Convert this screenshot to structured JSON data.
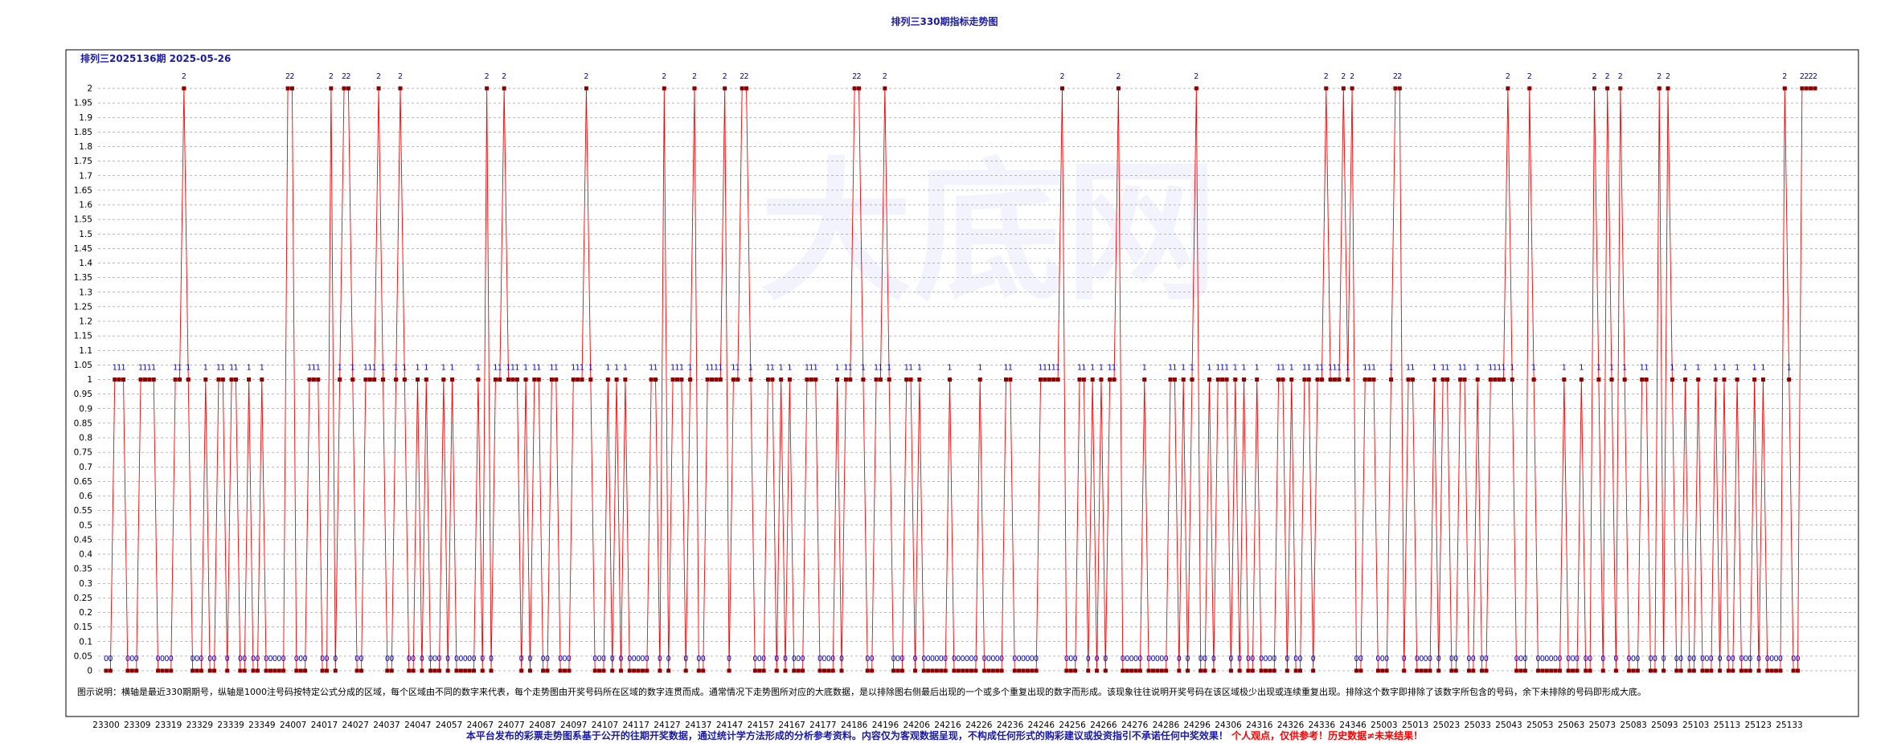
{
  "page": {
    "title": "排列三330期指标走势图",
    "issue_label": "排列三2025136期  2025-05-26",
    "note": "图示说明：横轴是最近330期期号，纵轴是1000注号码按特定公式分成的区域，每个区域由不同的数字来代表，每个走势图由开奖号码所在区域的数字连贯而成。通常情况下走势图所对应的大底数据，是以排除图右侧最后出现的一个或多个重复出现的数字而形成。该现象往往说明开奖号码在该区域极少出现或连续重复出现。排除这个数字即排除了该数字所包含的号码，余下未排除的号码即形成大底。",
    "disclaimer_main": "本平台发布的彩票走势图系基于公开的往期开奖数据，通过统计学方法形成的分析参考资料。内容仅为客观数据呈现，不构成任何形式的购彩建议或投资指引不承诺任何中奖效果！",
    "disclaimer_red": "个人观点，仅供参考！历史数据≠未来结果！",
    "watermark": "大底网"
  },
  "chart_data": {
    "type": "line",
    "title": "排列三330期指标走势图",
    "subtitle": "排列三2025136期  2025-05-26",
    "xlabel": "",
    "ylabel": "",
    "ylim": [
      0,
      2
    ],
    "grid": true,
    "y_ticks": [
      "0",
      "0.05",
      "0.1",
      "0.15",
      "0.2",
      "0.25",
      "0.3",
      "0.35",
      "0.4",
      "0.45",
      "0.5",
      "0.55",
      "0.6",
      "0.65",
      "0.7",
      "0.75",
      "0.8",
      "0.85",
      "0.9",
      "0.95",
      "1",
      "1.05",
      "1.1",
      "1.15",
      "1.2",
      "1.25",
      "1.3",
      "1.35",
      "1.4",
      "1.45",
      "1.5",
      "1.55",
      "1.6",
      "1.65",
      "1.7",
      "1.75",
      "1.8",
      "1.85",
      "1.9",
      "1.95",
      "2"
    ],
    "x_ticks": [
      "23300",
      "23309",
      "23319",
      "23329",
      "23339",
      "23349",
      "24007",
      "24017",
      "24027",
      "24037",
      "24047",
      "24057",
      "24067",
      "24077",
      "24087",
      "24097",
      "24107",
      "24117",
      "24127",
      "24137",
      "24147",
      "24157",
      "24167",
      "24177",
      "24186",
      "24196",
      "24206",
      "24216",
      "24226",
      "24236",
      "24246",
      "24256",
      "24266",
      "24276",
      "24286",
      "24296",
      "24306",
      "24316",
      "24326",
      "24336",
      "24346",
      "25003",
      "25013",
      "25023",
      "25033",
      "25043",
      "25053",
      "25063",
      "25073",
      "25083",
      "25093",
      "25103",
      "25113",
      "25123",
      "25133"
    ],
    "series": [
      {
        "color": "#ff0000",
        "marker_color": "#8b0000",
        "label_color": "#0000cc",
        "values": [
          0,
          0,
          1,
          1,
          1,
          0,
          0,
          0,
          1,
          1,
          1,
          1,
          0,
          0,
          0,
          0,
          1,
          1,
          2,
          1,
          0,
          0,
          0,
          1,
          0,
          0,
          1,
          1,
          0,
          1,
          1,
          0,
          0,
          1,
          0,
          0,
          1,
          0,
          0,
          0,
          0,
          0,
          2,
          2,
          0,
          0,
          0,
          1,
          1,
          1,
          0,
          0,
          2,
          0,
          1,
          2,
          2,
          1,
          0,
          0,
          1,
          1,
          1,
          2,
          1,
          0,
          0,
          1,
          2,
          1,
          0,
          0,
          1,
          0,
          1,
          0,
          0,
          0,
          1,
          0,
          1,
          0,
          0,
          0,
          0,
          0,
          1,
          0,
          2,
          0,
          1,
          1,
          2,
          1,
          1,
          1,
          0,
          1,
          0,
          1,
          1,
          0,
          0,
          1,
          1,
          0,
          0,
          0,
          1,
          1,
          1,
          2,
          1,
          0,
          0,
          0,
          1,
          0,
          1,
          0,
          1,
          0,
          0,
          0,
          0,
          0,
          1,
          1,
          0,
          2,
          0,
          1,
          1,
          1,
          0,
          1,
          2,
          0,
          0,
          1,
          1,
          1,
          1,
          2,
          0,
          1,
          1,
          2,
          2,
          1,
          0,
          0,
          0,
          1,
          1,
          0,
          1,
          0,
          1,
          0,
          0,
          0,
          1,
          1,
          1,
          0,
          0,
          0,
          0,
          1,
          0,
          1,
          1,
          2,
          2,
          1,
          0,
          0,
          1,
          1,
          2,
          1,
          0,
          0,
          0,
          1,
          1,
          0,
          1,
          0,
          0,
          0,
          0,
          0,
          0,
          1,
          0,
          0,
          0,
          0,
          0,
          0,
          1,
          0,
          0,
          0,
          0,
          0,
          1,
          1,
          0,
          0,
          0,
          0,
          0,
          0,
          1,
          1,
          1,
          1,
          1,
          2,
          0,
          0,
          0,
          1,
          1,
          0,
          1,
          0,
          1,
          0,
          1,
          1,
          2,
          0,
          0,
          0,
          0,
          0,
          1,
          0,
          0,
          0,
          0,
          0,
          1,
          1,
          0,
          1,
          0,
          1,
          2,
          0,
          0,
          1,
          0,
          1,
          1,
          1,
          0,
          1,
          0,
          1,
          0,
          0,
          1,
          0,
          0,
          0,
          0,
          1,
          1,
          0,
          1,
          0,
          0,
          1,
          1,
          0,
          1,
          1,
          2,
          1,
          1,
          1,
          2,
          1,
          2,
          0,
          0,
          1,
          1,
          1,
          0,
          0,
          0,
          1,
          2,
          2,
          0,
          1,
          1,
          0,
          0,
          0,
          0,
          1,
          0,
          1,
          1,
          0,
          0,
          1,
          1,
          0,
          0,
          1,
          0,
          0,
          1,
          1,
          1,
          1,
          2,
          1,
          0,
          0,
          0,
          2,
          1,
          0,
          0,
          0,
          0,
          0,
          0,
          1,
          0,
          0,
          0,
          1,
          0,
          0,
          2,
          1,
          0,
          2,
          1,
          0,
          2,
          1,
          0,
          0,
          0,
          1,
          1,
          0,
          0,
          2,
          0,
          2,
          1,
          0,
          0,
          1,
          0,
          0,
          1,
          0,
          0,
          0,
          1,
          0,
          1,
          0,
          0,
          1,
          0,
          0,
          0,
          1,
          0,
          1,
          0,
          0,
          0,
          0,
          2,
          1,
          0,
          0,
          2,
          2,
          2,
          2
        ]
      }
    ]
  }
}
